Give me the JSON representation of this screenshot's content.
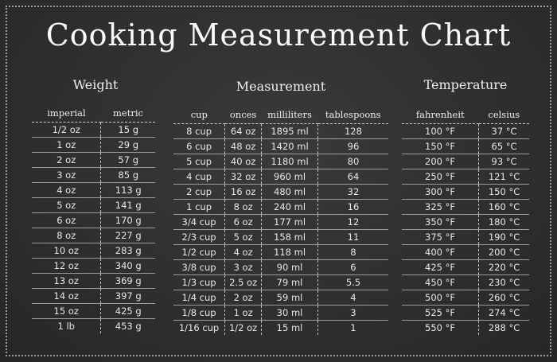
{
  "title": "Cooking Measurement Chart",
  "weight": {
    "title": "Weight",
    "headers": [
      "imperial",
      "metric"
    ],
    "rows": [
      [
        "1/2 oz",
        "15 g"
      ],
      [
        "1 oz",
        "29 g"
      ],
      [
        "2 oz",
        "57 g"
      ],
      [
        "3 oz",
        "85 g"
      ],
      [
        "4 oz",
        "113 g"
      ],
      [
        "5 oz",
        "141 g"
      ],
      [
        "6 oz",
        "170 g"
      ],
      [
        "8 oz",
        "227 g"
      ],
      [
        "10 oz",
        "283 g"
      ],
      [
        "12 oz",
        "340 g"
      ],
      [
        "13 oz",
        "369 g"
      ],
      [
        "14 oz",
        "397 g"
      ],
      [
        "15 oz",
        "425 g"
      ],
      [
        "1 lb",
        "453 g"
      ]
    ]
  },
  "measurement": {
    "title": "Measurement",
    "headers": [
      "cup",
      "onces",
      "milliliters",
      "tablespoons"
    ],
    "rows": [
      [
        "8 cup",
        "64 oz",
        "1895 ml",
        "128"
      ],
      [
        "6 cup",
        "48 oz",
        "1420 ml",
        "96"
      ],
      [
        "5 cup",
        "40 oz",
        "1180 ml",
        "80"
      ],
      [
        "4 cup",
        "32 oz",
        "960 ml",
        "64"
      ],
      [
        "2 cup",
        "16 oz",
        "480 ml",
        "32"
      ],
      [
        "1 cup",
        "8 oz",
        "240 ml",
        "16"
      ],
      [
        "3/4 cup",
        "6 oz",
        "177 ml",
        "12"
      ],
      [
        "2/3 cup",
        "5 oz",
        "158 ml",
        "11"
      ],
      [
        "1/2 cup",
        "4 oz",
        "118 ml",
        "8"
      ],
      [
        "3/8 cup",
        "3 oz",
        "90 ml",
        "6"
      ],
      [
        "1/3 cup",
        "2.5 oz",
        "79 ml",
        "5.5"
      ],
      [
        "1/4 cup",
        "2 oz",
        "59 ml",
        "4"
      ],
      [
        "1/8 cup",
        "1 oz",
        "30 ml",
        "3"
      ],
      [
        "1/16 cup",
        "1/2 oz",
        "15 ml",
        "1"
      ]
    ]
  },
  "temperature": {
    "title": "Temperature",
    "headers": [
      "fahrenheit",
      "celsius"
    ],
    "rows": [
      [
        "100 °F",
        "37 °C"
      ],
      [
        "150 °F",
        "65 °C"
      ],
      [
        "200 °F",
        "93 °C"
      ],
      [
        "250 °F",
        "121 °C"
      ],
      [
        "300 °F",
        "150 °C"
      ],
      [
        "325 °F",
        "160 °C"
      ],
      [
        "350 °F",
        "180 °C"
      ],
      [
        "375 °F",
        "190 °C"
      ],
      [
        "400 °F",
        "200 °C"
      ],
      [
        "425 °F",
        "220 °C"
      ],
      [
        "450 °F",
        "230 °C"
      ],
      [
        "500 °F",
        "260 °C"
      ],
      [
        "525 °F",
        "274 °C"
      ],
      [
        "550 °F",
        "288 °C"
      ]
    ]
  }
}
